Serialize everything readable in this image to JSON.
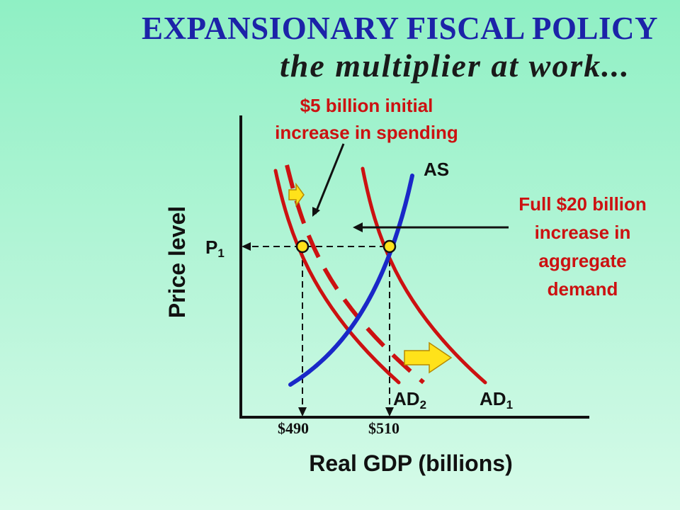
{
  "title": "EXPANSIONARY FISCAL POLICY",
  "subtitle": "the multiplier at work...",
  "annotations": {
    "initial": [
      "$5 billion initial",
      "increase in spending"
    ],
    "full": [
      "Full $20 billion",
      "increase in",
      "aggregate",
      "demand"
    ]
  },
  "axes": {
    "ylabel": "Price level",
    "xlabel": "Real GDP (billions)",
    "price_marker": {
      "main": "P",
      "sub": "1"
    },
    "x_ticks": [
      "$490",
      "$510"
    ]
  },
  "curves": {
    "as": "AS",
    "ad2": {
      "main": "AD",
      "sub": "2"
    },
    "ad1": {
      "main": "AD",
      "sub": "1"
    }
  },
  "colors": {
    "title": "#1c23a8",
    "ad_curves": "#cc1111",
    "as_curve": "#1a28c8",
    "equilibrium_point": "#ffe21a",
    "arrow_fill": "#ffe21a"
  }
}
